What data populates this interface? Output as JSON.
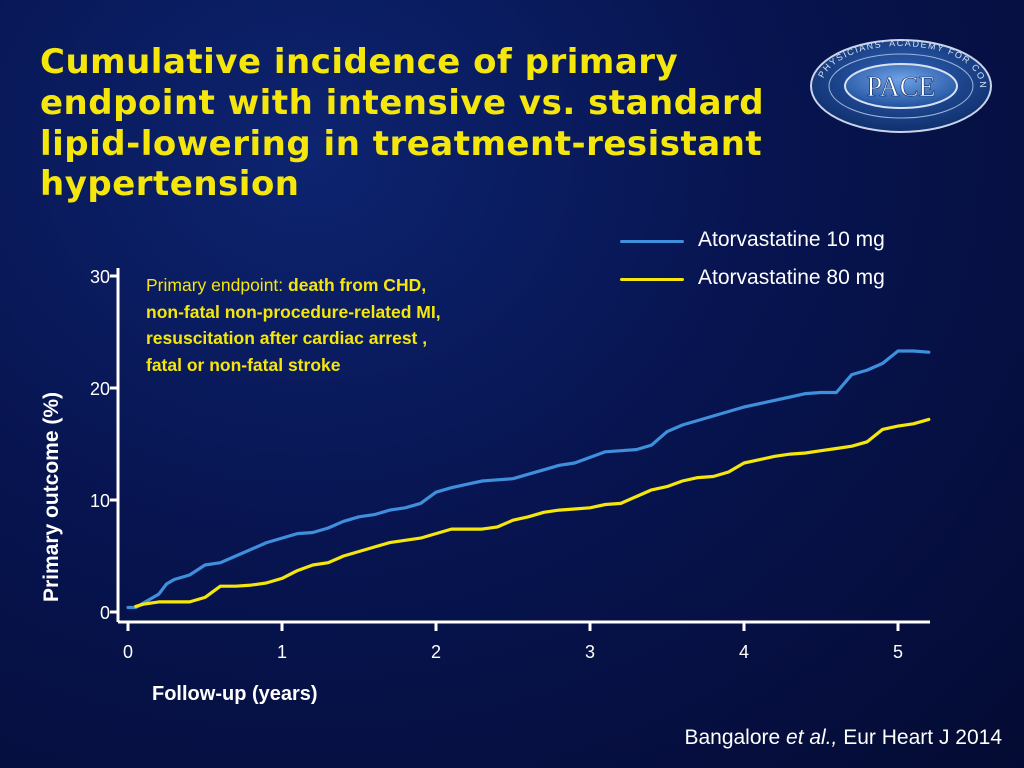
{
  "slide": {
    "title_lines": [
      "Cumulative incidence of primary",
      "endpoint with intensive vs. standard",
      "lipid-lowering in treatment-resistant",
      "hypertension"
    ],
    "logo": {
      "ring_text": "PHYSICIANS' ACADEMY FOR CONTINUING EDUCATION",
      "center_text": "PACE"
    },
    "annotation": {
      "prefix": "Primary endpoint: ",
      "bold_lines": [
        "death from CHD,",
        "non-fatal non-procedure-related MI,",
        "resuscitation after cardiac arrest ,",
        "fatal or non-fatal stroke"
      ]
    },
    "citation": {
      "author": "Bangalore ",
      "etal": "et al.,",
      "journal": " Eur Heart J 2014"
    },
    "colors": {
      "title": "#f5e60c",
      "annotation": "#f5e60c",
      "axis": "#ffffff"
    }
  },
  "chart_data": {
    "type": "line",
    "xlabel": "Follow-up (years)",
    "ylabel": "Primary outcome (%)",
    "xlim": [
      0,
      5.2
    ],
    "ylim": [
      0,
      30
    ],
    "x_ticks": [
      0,
      1,
      2,
      3,
      4,
      5
    ],
    "y_ticks": [
      0,
      10,
      20,
      30
    ],
    "legend_position": "top-right",
    "grid": false,
    "series": [
      {
        "name": "Atorvastatine 10 mg",
        "color": "#3f8fdc",
        "points": [
          [
            0,
            0.4
          ],
          [
            0.05,
            0.4
          ],
          [
            0.1,
            0.8
          ],
          [
            0.2,
            1.6
          ],
          [
            0.25,
            2.5
          ],
          [
            0.3,
            2.9
          ],
          [
            0.4,
            3.3
          ],
          [
            0.5,
            4.2
          ],
          [
            0.6,
            4.4
          ],
          [
            0.7,
            5.0
          ],
          [
            0.8,
            5.6
          ],
          [
            0.9,
            6.2
          ],
          [
            1.0,
            6.6
          ],
          [
            1.1,
            7.0
          ],
          [
            1.2,
            7.1
          ],
          [
            1.3,
            7.5
          ],
          [
            1.4,
            8.1
          ],
          [
            1.5,
            8.5
          ],
          [
            1.6,
            8.7
          ],
          [
            1.7,
            9.1
          ],
          [
            1.8,
            9.3
          ],
          [
            1.9,
            9.7
          ],
          [
            2.0,
            10.7
          ],
          [
            2.1,
            11.1
          ],
          [
            2.2,
            11.4
          ],
          [
            2.3,
            11.7
          ],
          [
            2.4,
            11.8
          ],
          [
            2.5,
            11.9
          ],
          [
            2.6,
            12.3
          ],
          [
            2.7,
            12.7
          ],
          [
            2.8,
            13.1
          ],
          [
            2.9,
            13.3
          ],
          [
            3.0,
            13.8
          ],
          [
            3.1,
            14.3
          ],
          [
            3.2,
            14.4
          ],
          [
            3.3,
            14.5
          ],
          [
            3.4,
            14.9
          ],
          [
            3.5,
            16.1
          ],
          [
            3.6,
            16.7
          ],
          [
            3.7,
            17.1
          ],
          [
            3.8,
            17.5
          ],
          [
            3.9,
            17.9
          ],
          [
            4.0,
            18.3
          ],
          [
            4.1,
            18.6
          ],
          [
            4.2,
            18.9
          ],
          [
            4.3,
            19.2
          ],
          [
            4.4,
            19.5
          ],
          [
            4.5,
            19.6
          ],
          [
            4.6,
            19.6
          ],
          [
            4.7,
            21.2
          ],
          [
            4.8,
            21.6
          ],
          [
            4.9,
            22.2
          ],
          [
            5.0,
            23.3
          ],
          [
            5.1,
            23.3
          ],
          [
            5.2,
            23.2
          ]
        ]
      },
      {
        "name": "Atorvastatine 80 mg",
        "color": "#f5e60c",
        "points": [
          [
            0.05,
            0.5
          ],
          [
            0.1,
            0.7
          ],
          [
            0.2,
            0.9
          ],
          [
            0.3,
            0.9
          ],
          [
            0.4,
            0.9
          ],
          [
            0.5,
            1.3
          ],
          [
            0.6,
            2.3
          ],
          [
            0.7,
            2.3
          ],
          [
            0.8,
            2.4
          ],
          [
            0.9,
            2.6
          ],
          [
            1.0,
            3.0
          ],
          [
            1.1,
            3.7
          ],
          [
            1.2,
            4.2
          ],
          [
            1.3,
            4.4
          ],
          [
            1.4,
            5.0
          ],
          [
            1.5,
            5.4
          ],
          [
            1.6,
            5.8
          ],
          [
            1.7,
            6.2
          ],
          [
            1.8,
            6.4
          ],
          [
            1.9,
            6.6
          ],
          [
            2.0,
            7.0
          ],
          [
            2.1,
            7.4
          ],
          [
            2.2,
            7.4
          ],
          [
            2.3,
            7.4
          ],
          [
            2.4,
            7.6
          ],
          [
            2.5,
            8.2
          ],
          [
            2.6,
            8.5
          ],
          [
            2.7,
            8.9
          ],
          [
            2.8,
            9.1
          ],
          [
            2.9,
            9.2
          ],
          [
            3.0,
            9.3
          ],
          [
            3.1,
            9.6
          ],
          [
            3.2,
            9.7
          ],
          [
            3.3,
            10.3
          ],
          [
            3.4,
            10.9
          ],
          [
            3.5,
            11.2
          ],
          [
            3.6,
            11.7
          ],
          [
            3.7,
            12.0
          ],
          [
            3.8,
            12.1
          ],
          [
            3.9,
            12.5
          ],
          [
            4.0,
            13.3
          ],
          [
            4.1,
            13.6
          ],
          [
            4.2,
            13.9
          ],
          [
            4.3,
            14.1
          ],
          [
            4.4,
            14.2
          ],
          [
            4.5,
            14.4
          ],
          [
            4.6,
            14.6
          ],
          [
            4.7,
            14.8
          ],
          [
            4.8,
            15.2
          ],
          [
            4.9,
            16.3
          ],
          [
            5.0,
            16.6
          ],
          [
            5.1,
            16.8
          ],
          [
            5.2,
            17.2
          ]
        ]
      }
    ]
  }
}
